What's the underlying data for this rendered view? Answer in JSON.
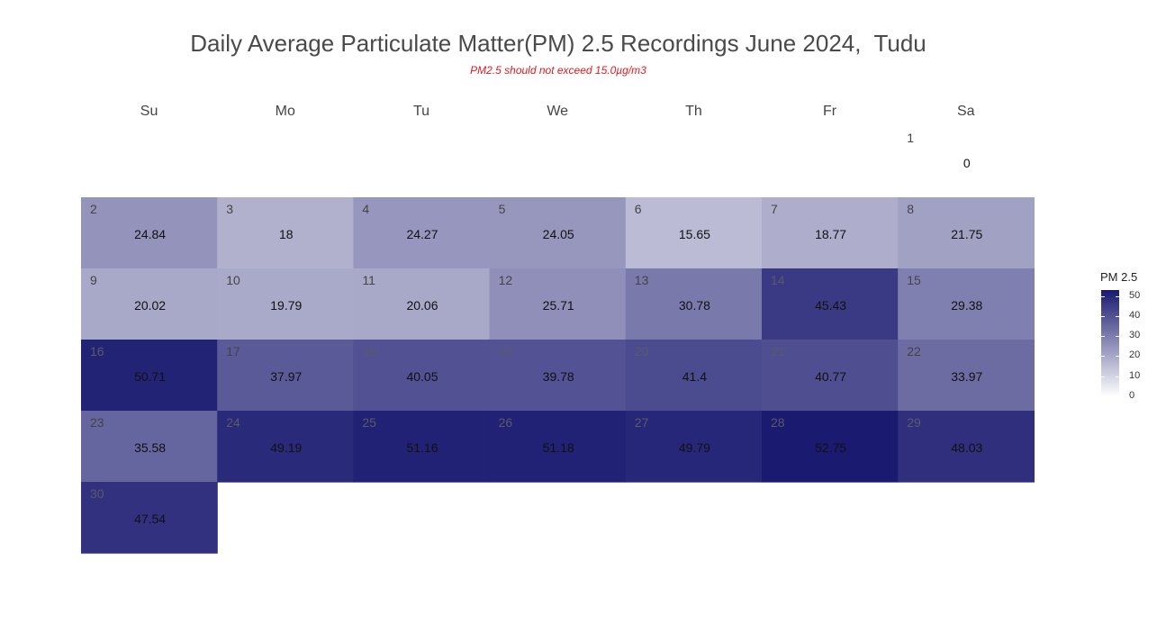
{
  "chart_data": {
    "type": "heatmap",
    "title": "Daily Average Particulate Matter(PM) 2.5 Recordings June 2024,  Tudu",
    "subtitle": "PM2.5 should not exceed 15.0µg/m3",
    "weekdays": [
      "Su",
      "Mo",
      "Tu",
      "We",
      "Th",
      "Fr",
      "Sa"
    ],
    "days": [
      {
        "day": 1,
        "weekday": 6,
        "week": 0,
        "value": 0
      },
      {
        "day": 2,
        "weekday": 0,
        "week": 1,
        "value": 24.84
      },
      {
        "day": 3,
        "weekday": 1,
        "week": 1,
        "value": 18
      },
      {
        "day": 4,
        "weekday": 2,
        "week": 1,
        "value": 24.27
      },
      {
        "day": 5,
        "weekday": 3,
        "week": 1,
        "value": 24.05
      },
      {
        "day": 6,
        "weekday": 4,
        "week": 1,
        "value": 15.65
      },
      {
        "day": 7,
        "weekday": 5,
        "week": 1,
        "value": 18.77
      },
      {
        "day": 8,
        "weekday": 6,
        "week": 1,
        "value": 21.75
      },
      {
        "day": 9,
        "weekday": 0,
        "week": 2,
        "value": 20.02
      },
      {
        "day": 10,
        "weekday": 1,
        "week": 2,
        "value": 19.79
      },
      {
        "day": 11,
        "weekday": 2,
        "week": 2,
        "value": 20.06
      },
      {
        "day": 12,
        "weekday": 3,
        "week": 2,
        "value": 25.71
      },
      {
        "day": 13,
        "weekday": 4,
        "week": 2,
        "value": 30.78
      },
      {
        "day": 14,
        "weekday": 5,
        "week": 2,
        "value": 45.43
      },
      {
        "day": 15,
        "weekday": 6,
        "week": 2,
        "value": 29.38
      },
      {
        "day": 16,
        "weekday": 0,
        "week": 3,
        "value": 50.71
      },
      {
        "day": 17,
        "weekday": 1,
        "week": 3,
        "value": 37.97
      },
      {
        "day": 18,
        "weekday": 2,
        "week": 3,
        "value": 40.05
      },
      {
        "day": 19,
        "weekday": 3,
        "week": 3,
        "value": 39.78
      },
      {
        "day": 20,
        "weekday": 4,
        "week": 3,
        "value": 41.4
      },
      {
        "day": 21,
        "weekday": 5,
        "week": 3,
        "value": 40.77
      },
      {
        "day": 22,
        "weekday": 6,
        "week": 3,
        "value": 33.97
      },
      {
        "day": 23,
        "weekday": 0,
        "week": 4,
        "value": 35.58
      },
      {
        "day": 24,
        "weekday": 1,
        "week": 4,
        "value": 49.19
      },
      {
        "day": 25,
        "weekday": 2,
        "week": 4,
        "value": 51.16
      },
      {
        "day": 26,
        "weekday": 3,
        "week": 4,
        "value": 51.18
      },
      {
        "day": 27,
        "weekday": 4,
        "week": 4,
        "value": 49.79
      },
      {
        "day": 28,
        "weekday": 5,
        "week": 4,
        "value": 52.75
      },
      {
        "day": 29,
        "weekday": 6,
        "week": 4,
        "value": 48.03
      },
      {
        "day": 30,
        "weekday": 0,
        "week": 5,
        "value": 47.54
      }
    ],
    "colorscale": {
      "low": "#ffffff",
      "high": "#191970",
      "range": [
        0,
        53
      ]
    },
    "legend": {
      "title": "PM 2.5",
      "ticks": [
        0,
        10,
        20,
        30,
        40,
        50
      ],
      "placement": "right"
    }
  }
}
